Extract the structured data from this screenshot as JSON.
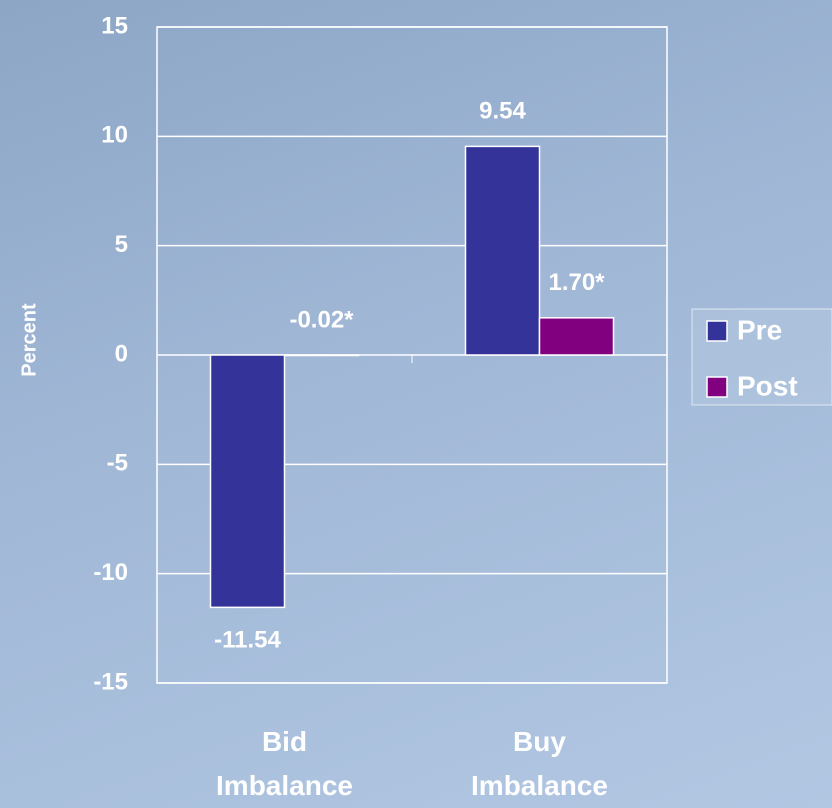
{
  "chart_data": {
    "type": "bar",
    "y_label": "Percent",
    "categories": [
      "Bid Imbalance",
      "Buy Imbalance"
    ],
    "series": [
      {
        "name": "Pre",
        "color": "#333399",
        "values": [
          -11.54,
          9.54
        ]
      },
      {
        "name": "Post",
        "color": "#800080",
        "values": [
          -0.02,
          1.7
        ],
        "value_labels": [
          "-0.02*",
          "1.70*"
        ]
      }
    ],
    "ylim": [
      -15,
      15
    ],
    "yticks": [
      -15,
      -10,
      -5,
      0,
      5,
      10,
      15
    ],
    "grid": true,
    "legend": "right"
  }
}
